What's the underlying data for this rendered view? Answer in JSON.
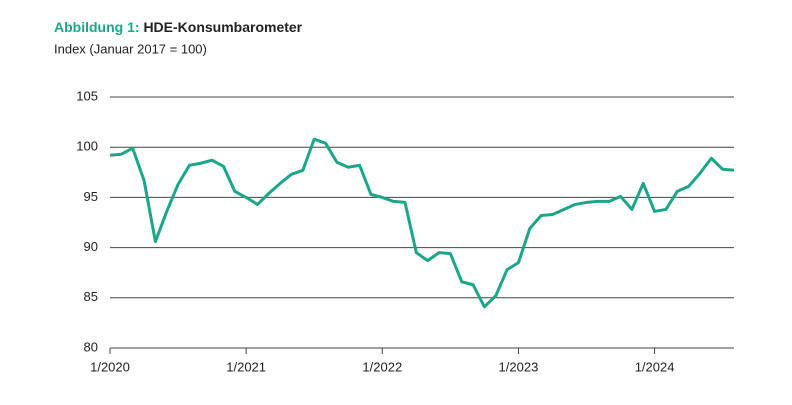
{
  "chart_data": {
    "type": "line",
    "title_prefix": "Abbildung 1:",
    "title": "HDE-Konsumbarometer",
    "subtitle": "Index (Januar 2017 = 100)",
    "categories": [
      "1/2020",
      null,
      null,
      null,
      null,
      null,
      null,
      null,
      null,
      null,
      null,
      null,
      "1/2021",
      null,
      null,
      null,
      null,
      null,
      null,
      null,
      null,
      null,
      null,
      null,
      "1/2022",
      null,
      null,
      null,
      null,
      null,
      null,
      null,
      null,
      null,
      null,
      null,
      "1/2023",
      null,
      null,
      null,
      null,
      null,
      null,
      null,
      null,
      null,
      null,
      null,
      "1/2024",
      null,
      null,
      null,
      null,
      null,
      null,
      null
    ],
    "values": [
      99.2,
      99.3,
      99.9,
      96.7,
      90.6,
      93.6,
      96.3,
      98.2,
      98.4,
      98.7,
      98.1,
      95.6,
      95.0,
      94.3,
      95.4,
      96.4,
      97.3,
      97.7,
      100.8,
      100.4,
      98.5,
      98.0,
      98.2,
      95.3,
      95.0,
      94.6,
      94.5,
      89.5,
      88.7,
      89.5,
      89.4,
      86.6,
      86.3,
      84.1,
      85.2,
      87.8,
      88.5,
      91.9,
      93.2,
      93.3,
      93.8,
      94.3,
      94.5,
      94.6,
      94.6,
      95.1,
      93.8,
      96.4,
      93.6,
      93.8,
      95.6,
      96.1,
      97.4,
      98.9,
      97.8,
      97.7
    ],
    "color": "#1ba68a",
    "title_color": "#1ba68a",
    "ylim": [
      80,
      105
    ],
    "yticks": [
      80,
      85,
      90,
      95,
      100,
      105
    ],
    "grid": true
  }
}
